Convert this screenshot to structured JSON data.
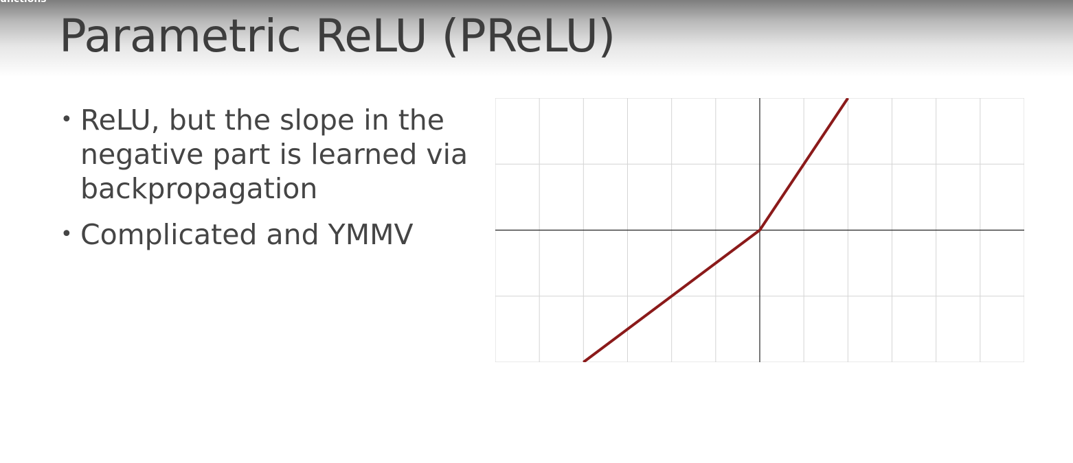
{
  "section_label": "unctions",
  "slide": {
    "title": "Parametric ReLU (PReLU)",
    "bullets": [
      {
        "text": "ReLU, but the slope in the negative part is learned via backpropagation"
      },
      {
        "text": "Complicated and YMMV"
      }
    ]
  },
  "colors": {
    "line": "#8b1a1a",
    "grid": "#d4d4d4",
    "axis": "#222222",
    "title": "#3d3d3d",
    "text": "#454545"
  },
  "chart_data": {
    "type": "line",
    "title": "",
    "xlabel": "",
    "ylabel": "",
    "xlim": [
      -6,
      6
    ],
    "ylim": [
      -3,
      3
    ],
    "grid": true,
    "x_step": 1,
    "y_step": 1.5,
    "series": [
      {
        "x": [
          -4,
          0,
          2
        ],
        "y": [
          -3,
          0,
          3
        ]
      }
    ]
  }
}
